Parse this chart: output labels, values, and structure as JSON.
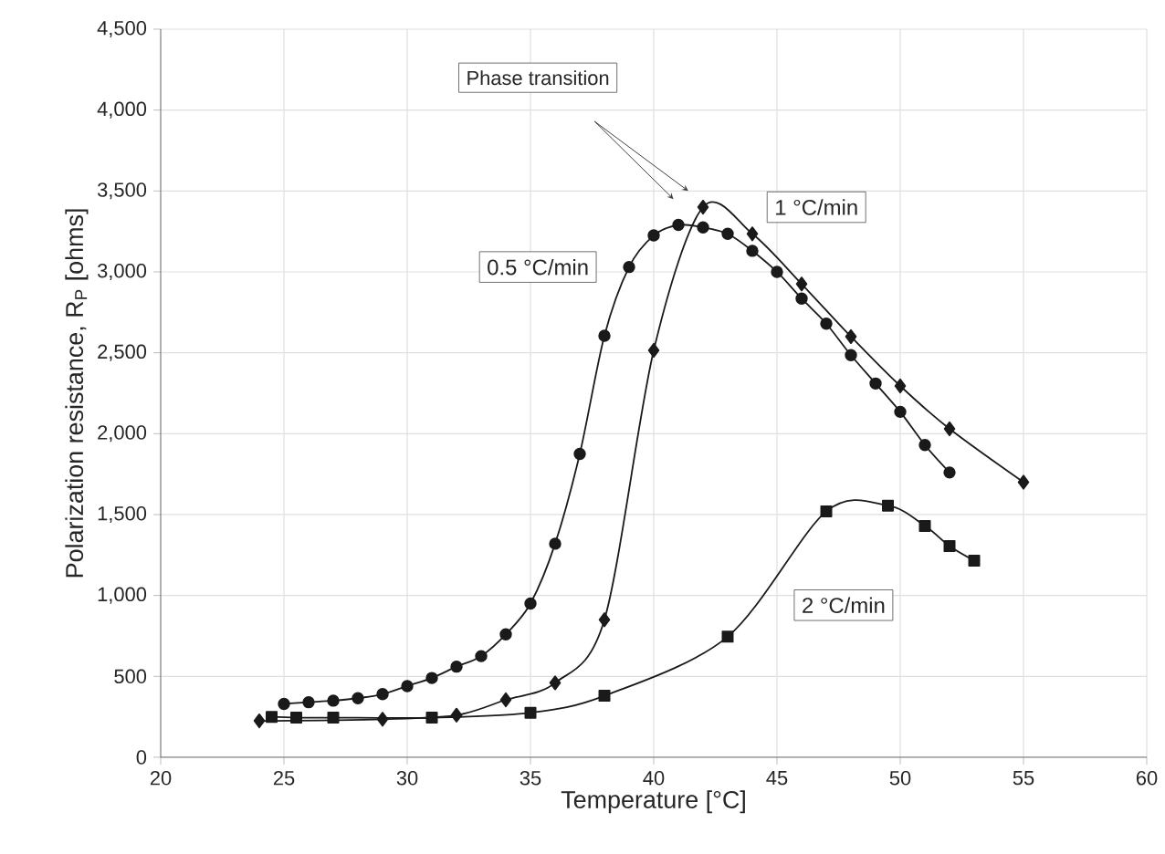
{
  "chart_data": {
    "type": "line",
    "xlabel": "Temperature [°C]",
    "ylabel": "Polarization resistance, R$_{P}$ [ohms]",
    "xlim": [
      20,
      60
    ],
    "xticks": [
      20,
      25,
      30,
      35,
      40,
      45,
      50,
      55,
      60
    ],
    "ylim": [
      0,
      4500
    ],
    "yticks": [
      0,
      {
        "value": 500,
        "label": "500"
      },
      {
        "value": 1000,
        "label": "1,000"
      },
      {
        "value": 1500,
        "label": "1,500"
      },
      {
        "value": 2000,
        "label": "2,000"
      },
      {
        "value": 2500,
        "label": "2,500"
      },
      {
        "value": 3000,
        "label": "3,000"
      },
      {
        "value": 3500,
        "label": "3,500"
      },
      {
        "value": 4000,
        "label": "4,000"
      },
      {
        "value": 4500,
        "label": "4,500"
      }
    ],
    "grid": true,
    "legend": false,
    "annotations": [
      "Phase transition"
    ],
    "series": [
      {
        "name": "0.5 °C/min",
        "color": "#1a1a1a",
        "marker": "circle",
        "x": [
          25,
          26,
          27,
          28,
          29,
          30,
          31,
          32,
          33,
          34,
          35,
          36,
          37,
          38,
          39,
          40,
          41,
          42,
          43,
          44,
          45,
          46,
          47,
          48,
          49,
          50,
          51,
          52
        ],
        "values": [
          330,
          340,
          350,
          365,
          390,
          440,
          490,
          560,
          625,
          760,
          950,
          1320,
          1875,
          2605,
          3030,
          3225,
          3290,
          3275,
          3235,
          3130,
          3000,
          2835,
          2680,
          2485,
          2310,
          2135,
          1930,
          1760
        ]
      },
      {
        "name": "1 °C/min",
        "color": "#1a1a1a",
        "marker": "diamond",
        "x": [
          24,
          29,
          32,
          34,
          36,
          38,
          40,
          42,
          44,
          46,
          48,
          50,
          52,
          55
        ],
        "values": [
          225,
          235,
          260,
          355,
          460,
          850,
          2515,
          3400,
          3235,
          2925,
          2600,
          2295,
          2030,
          1700
        ]
      },
      {
        "name": "2 °C/min",
        "color": "#1a1a1a",
        "marker": "square",
        "x": [
          24.5,
          25.5,
          27,
          31,
          35,
          38,
          43,
          47,
          49.5,
          51,
          52,
          53
        ],
        "values": [
          250,
          245,
          245,
          245,
          275,
          380,
          745,
          1520,
          1555,
          1430,
          1305,
          1215
        ]
      }
    ]
  }
}
